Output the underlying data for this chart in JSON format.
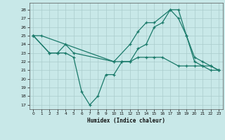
{
  "title": "",
  "xlabel": "Humidex (Indice chaleur)",
  "background_color": "#c8e8e8",
  "grid_color": "#aacccc",
  "line_color": "#1a7a6a",
  "xlim": [
    -0.5,
    23.5
  ],
  "ylim": [
    16.5,
    28.8
  ],
  "yticks": [
    17,
    18,
    19,
    20,
    21,
    22,
    23,
    24,
    25,
    26,
    27,
    28
  ],
  "xticks": [
    0,
    1,
    2,
    3,
    4,
    5,
    6,
    7,
    8,
    9,
    10,
    11,
    12,
    13,
    14,
    15,
    16,
    17,
    18,
    19,
    20,
    21,
    22,
    23
  ],
  "line1_x": [
    0,
    1,
    10,
    12,
    13,
    14,
    15,
    17,
    18,
    19,
    20,
    21,
    22,
    23
  ],
  "line1_y": [
    25.0,
    25.0,
    22.0,
    24.0,
    25.5,
    26.5,
    26.5,
    28.0,
    27.0,
    25.0,
    22.5,
    22.0,
    21.5,
    21.0
  ],
  "line2_x": [
    0,
    2,
    3,
    4,
    5,
    6,
    7,
    8,
    9,
    10,
    11,
    12,
    13,
    14,
    15,
    16,
    17,
    18,
    19,
    20,
    21,
    22,
    23
  ],
  "line2_y": [
    25.0,
    23.0,
    23.0,
    23.0,
    22.5,
    18.5,
    17.0,
    18.0,
    20.5,
    20.5,
    22.0,
    22.0,
    23.5,
    24.0,
    26.0,
    26.5,
    28.0,
    28.0,
    25.0,
    22.0,
    21.5,
    21.0,
    21.0
  ],
  "line3_x": [
    0,
    2,
    3,
    4,
    5,
    10,
    11,
    12,
    13,
    14,
    15,
    16,
    18,
    19,
    20,
    21,
    22,
    23
  ],
  "line3_y": [
    25.0,
    23.0,
    23.0,
    24.0,
    23.0,
    22.0,
    22.0,
    22.0,
    22.5,
    22.5,
    22.5,
    22.5,
    21.5,
    21.5,
    21.5,
    21.5,
    21.5,
    21.0
  ]
}
